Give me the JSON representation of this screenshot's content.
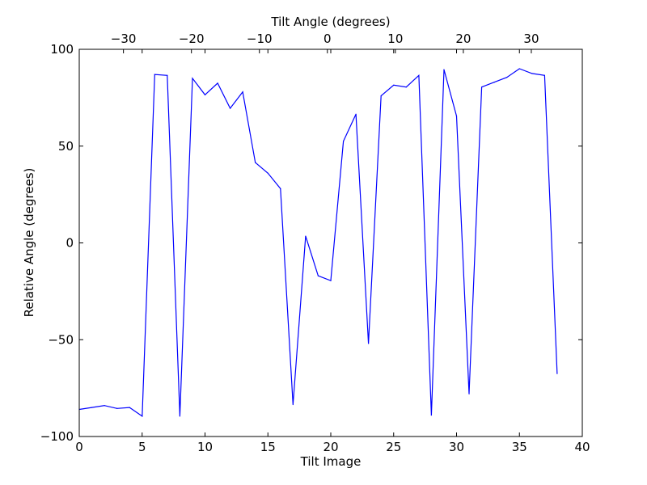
{
  "chart_data": {
    "type": "line",
    "title": "",
    "xlabel": "Tilt Image",
    "ylabel": "Relative Angle (degrees)",
    "x2label": "Tilt Angle (degrees)",
    "xlim": [
      0,
      40
    ],
    "ylim": [
      -100,
      100
    ],
    "x2lim": [
      -36.5,
      37.5
    ],
    "xticks": [
      0,
      5,
      10,
      15,
      20,
      25,
      30,
      35,
      40
    ],
    "xtick_labels": [
      "0",
      "5",
      "10",
      "15",
      "20",
      "25",
      "30",
      "35",
      "40"
    ],
    "yticks": [
      -100,
      -50,
      0,
      50,
      100
    ],
    "ytick_labels": [
      "−100",
      "−50",
      "0",
      "50",
      "100"
    ],
    "x2ticks": [
      -30,
      -20,
      -10,
      0,
      10,
      20,
      30
    ],
    "x2tick_labels": [
      "−30",
      "−20",
      "−10",
      "0",
      "10",
      "20",
      "30"
    ],
    "grid": false,
    "legend": "none",
    "series": [
      {
        "color": "#0000ff",
        "x": [
          0,
          1,
          2,
          3,
          4,
          5,
          6,
          7,
          8,
          9,
          10,
          11,
          12,
          13,
          14,
          15,
          16,
          17,
          18,
          19,
          20,
          21,
          22,
          23,
          24,
          25,
          26,
          27,
          28,
          29,
          30,
          31,
          32,
          33,
          34,
          35,
          36,
          37,
          38
        ],
        "y": [
          -86,
          -85,
          -84,
          -85.5,
          -85,
          -89.5,
          87,
          86.5,
          -89.5,
          85,
          76.5,
          82.5,
          69.5,
          78,
          41.5,
          36,
          28,
          -83.5,
          3.5,
          -17,
          -19.5,
          52.5,
          66.5,
          -52,
          76,
          81.5,
          80.5,
          86.5,
          -89,
          89.5,
          65.5,
          -78,
          80.5,
          83,
          85.5,
          90,
          87.5,
          86.5,
          -67.5
        ]
      }
    ]
  }
}
